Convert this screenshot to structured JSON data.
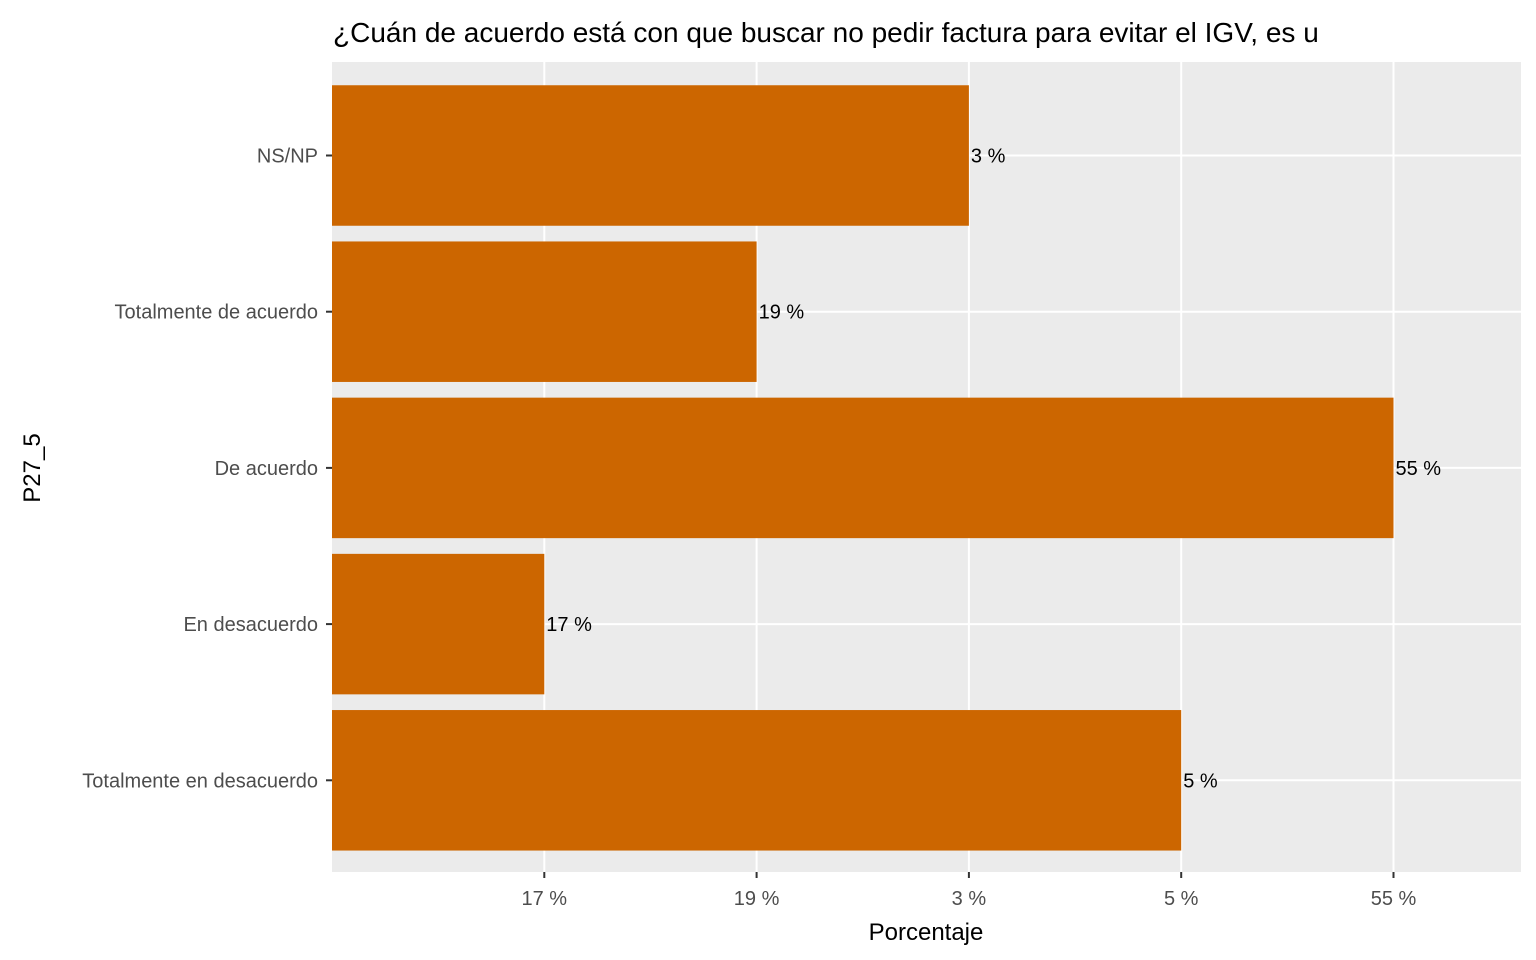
{
  "chart_data": {
    "type": "bar",
    "orientation": "horizontal",
    "title": "¿Cuán de acuerdo está con que buscar no pedir factura para evitar el IGV, es u",
    "xlabel": "Porcentaje",
    "ylabel": "P27_5",
    "categories": [
      "NS/NP",
      "Totalmente de acuerdo",
      "De acuerdo",
      "En desacuerdo",
      "Totalmente en desacuerdo"
    ],
    "bar_labels": [
      "3 %",
      "19 %",
      "55 %",
      "17 %",
      "5 %"
    ],
    "x_ticks": [
      "17 %",
      "19 %",
      "3 %",
      "5 %",
      "55 %"
    ],
    "bar_rank": [
      3,
      2,
      5,
      1,
      4
    ],
    "x_scale": "discrete",
    "grid": true,
    "legend": "none",
    "colors": {
      "bar": "#CC6600",
      "panel": "#EBEBEB",
      "gridline": "#FFFFFF"
    }
  }
}
